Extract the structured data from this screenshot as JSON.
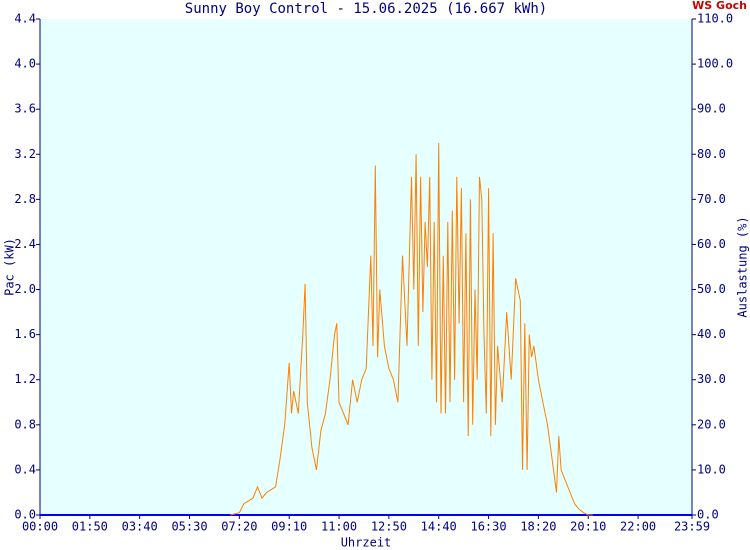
{
  "chart_data": {
    "type": "line",
    "title": "Sunny Boy Control - 15.06.2025 (16.667 kWh)",
    "site_label": "WS Goch",
    "y_label": "Pac (kW)",
    "y2_label": "Auslastung (%)",
    "x_label": "Uhrzeit",
    "color": "#ff8000",
    "baseline_color": "#0000ff",
    "background": "#e6ffff",
    "xlim": [
      "00:00",
      "23:59"
    ],
    "xticks": [
      "00:00",
      "01:50",
      "03:40",
      "05:30",
      "07:20",
      "09:10",
      "11:00",
      "12:50",
      "14:40",
      "16:30",
      "18:20",
      "20:10",
      "22:00",
      "23:59"
    ],
    "ylim": [
      0,
      4.4
    ],
    "yticks": [
      {
        "value": 0,
        "label": "0.0"
      },
      {
        "value": 0.4,
        "label": "0.4"
      },
      {
        "value": 0.8,
        "label": "0.8"
      },
      {
        "value": 1.2,
        "label": "1.2"
      },
      {
        "value": 1.6,
        "label": "1.6"
      },
      {
        "value": 2.0,
        "label": "2.0"
      },
      {
        "value": 2.4,
        "label": "2.4"
      },
      {
        "value": 2.8,
        "label": "2.8"
      },
      {
        "value": 3.2,
        "label": "3.2"
      },
      {
        "value": 3.6,
        "label": "3.6"
      },
      {
        "value": 4.0,
        "label": "4.0"
      },
      {
        "value": 4.4,
        "label": "4.4"
      }
    ],
    "y2lim": [
      0,
      110
    ],
    "y2ticks": [
      {
        "value": 0,
        "label": "0.0"
      },
      {
        "value": 10,
        "label": "10.0"
      },
      {
        "value": 20,
        "label": "20.0"
      },
      {
        "value": 30,
        "label": "30.0"
      },
      {
        "value": 40,
        "label": "40.0"
      },
      {
        "value": 50,
        "label": "50.0"
      },
      {
        "value": 60,
        "label": "60.0"
      },
      {
        "value": 70,
        "label": "70.0"
      },
      {
        "value": 80,
        "label": "80.0"
      },
      {
        "value": 90,
        "label": "90.0"
      },
      {
        "value": 100,
        "label": "100.0"
      },
      {
        "value": 110,
        "label": "110.0"
      }
    ],
    "x": [
      "07:00",
      "07:20",
      "07:30",
      "07:50",
      "08:00",
      "08:10",
      "08:20",
      "08:40",
      "08:50",
      "09:00",
      "09:10",
      "09:15",
      "09:20",
      "09:30",
      "09:40",
      "09:45",
      "09:50",
      "10:00",
      "10:10",
      "10:20",
      "10:30",
      "10:40",
      "10:50",
      "10:55",
      "11:00",
      "11:10",
      "11:20",
      "11:30",
      "11:40",
      "11:50",
      "12:00",
      "12:10",
      "12:15",
      "12:20",
      "12:25",
      "12:30",
      "12:40",
      "12:50",
      "13:00",
      "13:10",
      "13:20",
      "13:30",
      "13:40",
      "13:45",
      "13:50",
      "13:55",
      "14:00",
      "14:05",
      "14:10",
      "14:15",
      "14:20",
      "14:25",
      "14:30",
      "14:35",
      "14:40",
      "14:45",
      "14:50",
      "14:55",
      "15:00",
      "15:05",
      "15:10",
      "15:15",
      "15:20",
      "15:25",
      "15:30",
      "15:35",
      "15:40",
      "15:45",
      "15:50",
      "15:55",
      "16:00",
      "16:05",
      "16:10",
      "16:15",
      "16:20",
      "16:25",
      "16:30",
      "16:35",
      "16:40",
      "16:45",
      "16:50",
      "17:00",
      "17:10",
      "17:20",
      "17:30",
      "17:40",
      "17:45",
      "17:50",
      "17:55",
      "18:00",
      "18:05",
      "18:10",
      "18:20",
      "18:30",
      "18:40",
      "18:50",
      "19:00",
      "19:05",
      "19:10",
      "19:20",
      "19:30",
      "19:40",
      "19:50",
      "20:00",
      "20:10",
      "20:20"
    ],
    "values": [
      0,
      0.02,
      0.1,
      0.15,
      0.25,
      0.15,
      0.2,
      0.25,
      0.5,
      0.8,
      1.35,
      0.9,
      1.1,
      0.9,
      1.6,
      2.05,
      1.0,
      0.6,
      0.4,
      0.75,
      0.9,
      1.2,
      1.6,
      1.7,
      1.0,
      0.9,
      0.8,
      1.2,
      1.0,
      1.2,
      1.3,
      2.3,
      1.5,
      3.1,
      1.4,
      2.0,
      1.5,
      1.3,
      1.2,
      1.0,
      2.3,
      1.5,
      3.0,
      2.0,
      3.2,
      1.5,
      3.0,
      1.8,
      2.6,
      2.2,
      3.0,
      1.2,
      2.6,
      1.0,
      3.3,
      0.9,
      2.3,
      0.9,
      2.6,
      1.0,
      2.7,
      1.2,
      3.0,
      1.7,
      2.9,
      1.0,
      2.5,
      0.7,
      2.8,
      0.8,
      2.0,
      1.2,
      3.0,
      2.8,
      1.6,
      0.9,
      2.9,
      0.7,
      2.5,
      0.8,
      1.5,
      1.0,
      1.8,
      1.2,
      2.1,
      1.9,
      0.4,
      1.7,
      0.4,
      1.6,
      1.4,
      1.5,
      1.2,
      1.0,
      0.8,
      0.5,
      0.2,
      0.7,
      0.4,
      0.3,
      0.2,
      0.1,
      0.05,
      0.02,
      0,
      0
    ]
  }
}
